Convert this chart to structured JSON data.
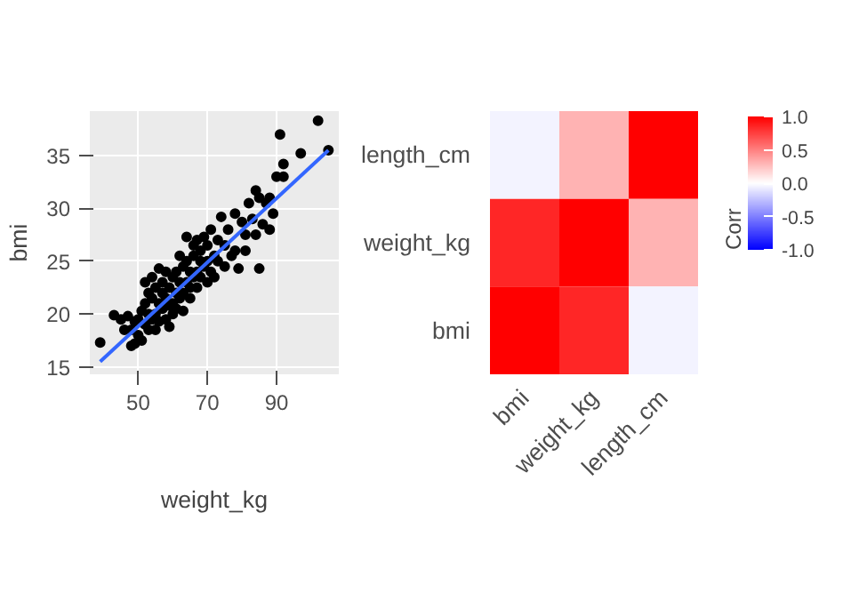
{
  "chart_data": [
    {
      "type": "scatter",
      "xlabel": "weight_kg",
      "ylabel": "bmi",
      "xlim": [
        36,
        108
      ],
      "ylim": [
        14.3,
        39.2
      ],
      "xticks": [
        50,
        70,
        90
      ],
      "yticks": [
        15,
        20,
        25,
        30,
        35
      ],
      "grid": true,
      "series": [
        {
          "color": "#000000",
          "marker": "circle",
          "x": [
            39,
            43,
            45,
            46,
            47,
            48,
            48,
            49,
            49,
            50,
            50,
            51,
            51,
            52,
            52,
            52,
            53,
            53,
            53,
            54,
            54,
            54,
            55,
            55,
            55,
            56,
            56,
            56,
            57,
            57,
            57,
            58,
            58,
            58,
            59,
            59,
            59,
            60,
            60,
            60,
            61,
            61,
            61,
            62,
            62,
            62,
            63,
            63,
            63,
            64,
            64,
            64,
            65,
            65,
            65,
            66,
            66,
            66,
            67,
            67,
            67,
            68,
            68,
            68,
            69,
            69,
            70,
            70,
            70,
            71,
            71,
            72,
            72,
            73,
            73,
            74,
            75,
            75,
            76,
            77,
            78,
            78,
            79,
            80,
            81,
            81,
            82,
            83,
            84,
            84,
            85,
            85,
            86,
            87,
            88,
            88,
            89,
            90,
            91,
            92,
            92,
            97,
            102,
            105
          ],
          "values": [
            17.3,
            19.9,
            19.5,
            18.5,
            19.8,
            17,
            18.5,
            19.3,
            17.2,
            18,
            19.5,
            20.3,
            17.5,
            19,
            21,
            23,
            18.5,
            20,
            22,
            19.5,
            21.5,
            23.5,
            20,
            18.5,
            22.5,
            21,
            24.3,
            19.3,
            20.5,
            22,
            23,
            19.5,
            21.5,
            24,
            20.8,
            22.5,
            18.8,
            21,
            23.5,
            20,
            22,
            24,
            20.5,
            21.5,
            23,
            25.5,
            22,
            24.5,
            20.3,
            23,
            25,
            27.3,
            22.5,
            24,
            21.5,
            23.5,
            25.5,
            26.5,
            24,
            22.5,
            27,
            25,
            23.5,
            26,
            24.5,
            27.3,
            25,
            23,
            26.5,
            24,
            28,
            25.5,
            23.5,
            27,
            25,
            29.2,
            26.5,
            24.5,
            28,
            25.5,
            26,
            29.5,
            24.3,
            28.7,
            27.5,
            26,
            30.5,
            29,
            31.7,
            27.5,
            24.3,
            31,
            28.5,
            30.5,
            31,
            28,
            29.5,
            33,
            37,
            33,
            34.2,
            35.2,
            38.3,
            35.5
          ]
        },
        {
          "type": "line",
          "color": "#3366ff",
          "x": [
            39,
            105
          ],
          "values": [
            15.5,
            35.5
          ]
        }
      ]
    },
    {
      "type": "heatmap",
      "categories": [
        "bmi",
        "weight_kg",
        "length_cm"
      ],
      "y_categories": [
        "length_cm",
        "weight_kg",
        "bmi"
      ],
      "cells": [
        [
          -0.05,
          0.3,
          1.0
        ],
        [
          0.85,
          1.0,
          0.3
        ],
        [
          1.0,
          0.85,
          -0.05
        ]
      ],
      "clabel": "Corr",
      "clim": [
        -1,
        1
      ],
      "cticks": [
        {
          "value": -1,
          "label": "-1.0"
        },
        -0.5,
        {
          "value": 0,
          "label": "0.0"
        },
        0.5,
        {
          "value": 1,
          "label": "1.0"
        }
      ],
      "colors": [
        "#0000ff",
        "#ffffff",
        "#ff0000"
      ]
    }
  ]
}
